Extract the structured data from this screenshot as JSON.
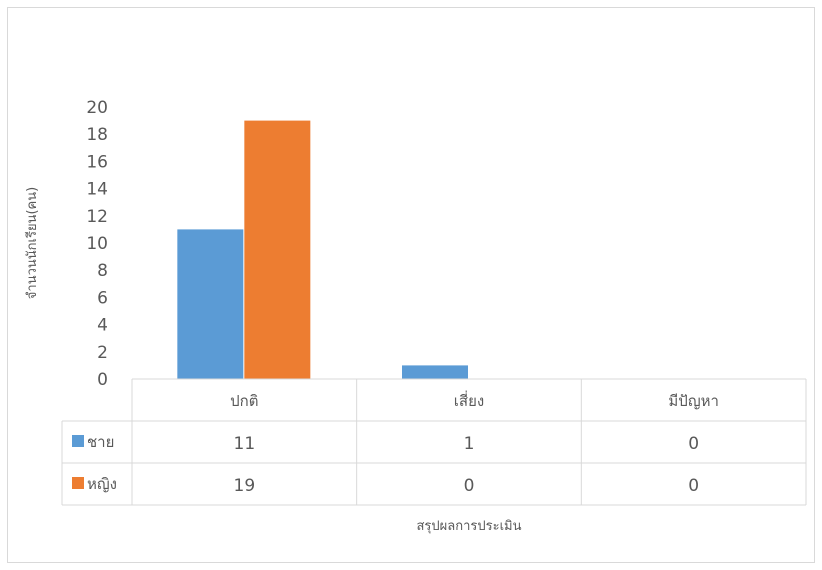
{
  "chart_data": {
    "type": "bar",
    "categories": [
      "ปกติ",
      "เสี่ยง",
      "มีปัญหา"
    ],
    "series": [
      {
        "name": "ชาย",
        "values": [
          11,
          1,
          0
        ],
        "color": "#5b9bd5"
      },
      {
        "name": "หญิง",
        "values": [
          19,
          0,
          0
        ],
        "color": "#ed7d31"
      }
    ],
    "ylim": [
      0,
      20
    ],
    "yticks": [
      0,
      2,
      4,
      6,
      8,
      10,
      12,
      14,
      16,
      18,
      20
    ],
    "xlabel": "สรุปผลการประเมิน",
    "ylabel": "จำนวนนักเรียน(คน)",
    "grid": false,
    "legend": "data-table",
    "data_table": true
  }
}
